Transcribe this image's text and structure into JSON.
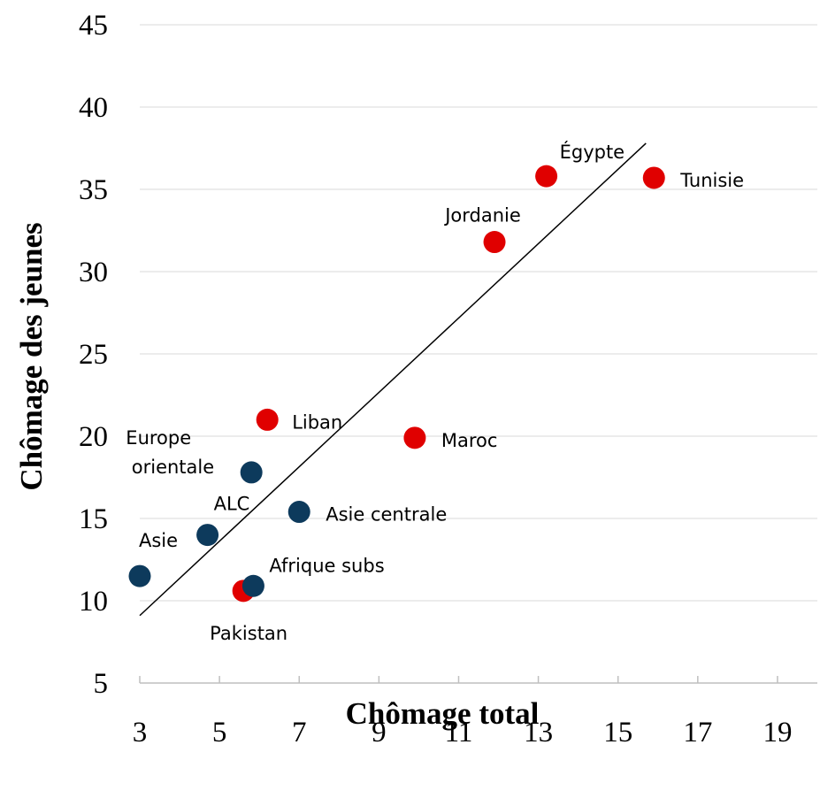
{
  "chart_data": {
    "type": "scatter",
    "xlabel": "Chômage total",
    "ylabel": "Chômage des jeunes",
    "xlim": [
      3,
      20
    ],
    "ylim": [
      5,
      45
    ],
    "xticks": [
      3,
      5,
      7,
      9,
      11,
      13,
      15,
      17,
      19
    ],
    "yticks": [
      5,
      10,
      15,
      20,
      25,
      30,
      35,
      40,
      45
    ],
    "grid": "horizontal",
    "colors": {
      "group_red": "#e00000",
      "group_blue": "#0d3a5c"
    },
    "points": [
      {
        "label": "Égypte",
        "x": 13.2,
        "y": 35.8,
        "color": "#e00000"
      },
      {
        "label": "Tunisie",
        "x": 15.9,
        "y": 35.7,
        "color": "#e00000"
      },
      {
        "label": "Jordanie",
        "x": 11.9,
        "y": 31.8,
        "color": "#e00000"
      },
      {
        "label": "Liban",
        "x": 6.2,
        "y": 21.0,
        "color": "#e00000"
      },
      {
        "label": "Maroc",
        "x": 9.9,
        "y": 19.9,
        "color": "#e00000"
      },
      {
        "label": "Pakistan",
        "x": 5.6,
        "y": 10.6,
        "color": "#e00000"
      },
      {
        "label": "Europe\norientale",
        "x": 5.8,
        "y": 17.8,
        "color": "#0d3a5c"
      },
      {
        "label": "ALC",
        "x": 4.7,
        "y": 14.0,
        "color": "#0d3a5c"
      },
      {
        "label": "Asie centrale",
        "x": 7.0,
        "y": 15.4,
        "color": "#0d3a5c"
      },
      {
        "label": "Asie",
        "x": 3.0,
        "y": 11.5,
        "color": "#0d3a5c"
      },
      {
        "label": "Afrique subs",
        "x": 5.85,
        "y": 10.9,
        "color": "#0d3a5c"
      }
    ],
    "trendline": {
      "x": [
        3.0,
        15.7
      ],
      "y": [
        9.1,
        37.8
      ]
    }
  }
}
